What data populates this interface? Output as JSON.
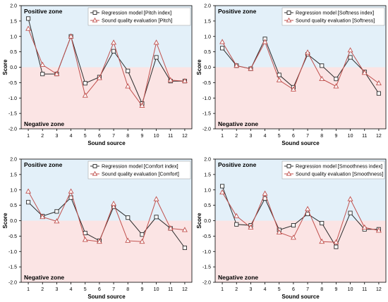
{
  "colors": {
    "positive_zone": "#e3f0f9",
    "negative_zone": "#fbe4e4",
    "regression_line": "#2b2b2b",
    "evaluation_line": "#c0504d",
    "axis": "#000000"
  },
  "zone_labels": {
    "positive": "Positive zone",
    "negative": "Negative zone"
  },
  "chart_data": [
    {
      "type": "line",
      "xlabel": "Sound source",
      "ylabel": "Score",
      "ylim": [
        -2.0,
        2.0
      ],
      "yticks": [
        "-2.0",
        "-1.5",
        "-1.0",
        "-0.5",
        "0.0",
        "0.5",
        "1.0",
        "1.5",
        "2.0"
      ],
      "categories": [
        "1",
        "2",
        "3",
        "4",
        "5",
        "6",
        "7",
        "8",
        "9",
        "10",
        "11",
        "12"
      ],
      "legend_position": "top-right",
      "series": [
        {
          "name": "Regression model [Pitch index]",
          "marker": "square",
          "values": [
            1.58,
            -0.22,
            -0.22,
            1.0,
            -0.52,
            -0.32,
            0.52,
            -0.12,
            -1.18,
            0.32,
            -0.45,
            -0.45
          ]
        },
        {
          "name": "Sound quality evaluation [Pitch]",
          "marker": "triangle",
          "values": [
            1.25,
            0.08,
            -0.22,
            1.0,
            -0.92,
            -0.35,
            0.8,
            -0.62,
            -1.25,
            0.8,
            -0.42,
            -0.45
          ]
        }
      ]
    },
    {
      "type": "line",
      "xlabel": "Sound source",
      "ylabel": "Score",
      "ylim": [
        -2.0,
        2.0
      ],
      "yticks": [
        "-2.0",
        "-1.5",
        "-1.0",
        "-0.5",
        "0.0",
        "0.5",
        "1.0",
        "1.5",
        "2.0"
      ],
      "categories": [
        "1",
        "2",
        "3",
        "4",
        "5",
        "6",
        "7",
        "8",
        "9",
        "10",
        "11",
        "12"
      ],
      "legend_position": "top-right",
      "series": [
        {
          "name": "Regression model [Softness index]",
          "marker": "square",
          "values": [
            0.62,
            0.05,
            -0.05,
            0.92,
            -0.25,
            -0.65,
            0.42,
            0.05,
            -0.38,
            0.32,
            -0.15,
            -0.85
          ]
        },
        {
          "name": "Sound quality evaluation [Softness]",
          "marker": "triangle",
          "values": [
            0.82,
            0.05,
            -0.05,
            0.82,
            -0.42,
            -0.72,
            0.48,
            -0.38,
            -0.62,
            0.55,
            -0.18,
            -0.52
          ]
        }
      ]
    },
    {
      "type": "line",
      "xlabel": "Sound source",
      "ylabel": "Score",
      "ylim": [
        -2.0,
        2.0
      ],
      "yticks": [
        "-2.0",
        "-1.5",
        "-1.0",
        "-0.5",
        "0.0",
        "0.5",
        "1.0",
        "1.5",
        "2.0"
      ],
      "categories": [
        "1",
        "2",
        "3",
        "4",
        "5",
        "6",
        "7",
        "8",
        "9",
        "10",
        "11",
        "12"
      ],
      "legend_position": "top-right",
      "series": [
        {
          "name": "Regression model [Comfort index]",
          "marker": "square",
          "values": [
            0.6,
            0.15,
            0.3,
            0.75,
            -0.4,
            -0.65,
            0.45,
            0.1,
            -0.45,
            0.12,
            -0.25,
            -0.88
          ]
        },
        {
          "name": "Sound quality evaluation [Comfort]",
          "marker": "triangle",
          "values": [
            0.95,
            0.12,
            -0.02,
            0.95,
            -0.62,
            -0.68,
            0.55,
            -0.65,
            -0.68,
            0.7,
            -0.25,
            -0.3
          ]
        }
      ]
    },
    {
      "type": "line",
      "xlabel": "Sound source",
      "ylabel": "Score",
      "ylim": [
        -2.0,
        2.0
      ],
      "yticks": [
        "-2.0",
        "-1.5",
        "-1.0",
        "-0.5",
        "0.0",
        "0.5",
        "1.0",
        "1.5",
        "2.0"
      ],
      "categories": [
        "1",
        "2",
        "3",
        "4",
        "5",
        "6",
        "7",
        "8",
        "9",
        "10",
        "11",
        "12"
      ],
      "legend_position": "top-right",
      "series": [
        {
          "name": "Regression model [Smoothness index]",
          "marker": "square",
          "values": [
            1.12,
            -0.12,
            -0.15,
            0.72,
            -0.3,
            -0.15,
            0.22,
            -0.08,
            -0.85,
            0.25,
            -0.28,
            -0.28
          ]
        },
        {
          "name": "Sound quality evaluation [Smoothness]",
          "marker": "triangle",
          "values": [
            0.92,
            0.15,
            -0.22,
            0.88,
            -0.38,
            -0.55,
            0.38,
            -0.68,
            -0.7,
            0.7,
            -0.22,
            -0.32
          ]
        }
      ]
    }
  ]
}
